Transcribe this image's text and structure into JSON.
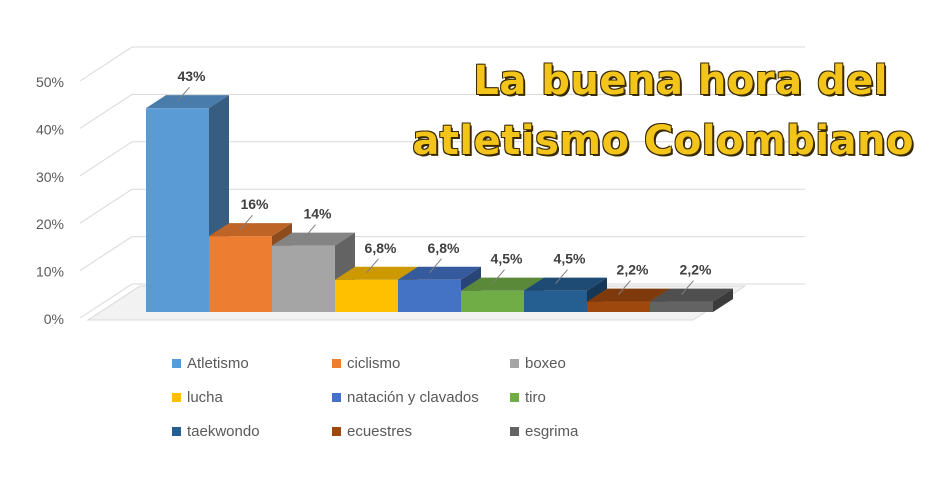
{
  "title": {
    "line1": "La buena hora del",
    "line2": "atletismo Colombiano"
  },
  "chart_data": {
    "type": "bar",
    "categories": [
      "Atletismo",
      "ciclismo",
      "boxeo",
      "lucha",
      "natación y clavados",
      "tiro",
      "taekwondo",
      "ecuestres",
      "esgrima"
    ],
    "values": [
      43,
      16,
      14,
      6.8,
      6.8,
      4.5,
      4.5,
      2.2,
      2.2
    ],
    "data_labels": [
      "43%",
      "16%",
      "14%",
      "6,8%",
      "6,8%",
      "4,5%",
      "4,5%",
      "2,2%",
      "2,2%"
    ],
    "colors": [
      "#5b9bd5",
      "#ed7d31",
      "#a5a5a5",
      "#ffc000",
      "#4472c4",
      "#70ad47",
      "#255e91",
      "#9e480e",
      "#636363"
    ],
    "y_ticks": [
      "0%",
      "10%",
      "20%",
      "30%",
      "40%",
      "50%"
    ],
    "ylim": [
      0,
      50
    ],
    "grid": true,
    "3d": true,
    "legend_position": "bottom",
    "legend": [
      "Atletismo",
      "ciclismo",
      "boxeo",
      "lucha",
      "natación y clavados",
      "tiro",
      "taekwondo",
      "ecuestres",
      "esgrima"
    ]
  }
}
